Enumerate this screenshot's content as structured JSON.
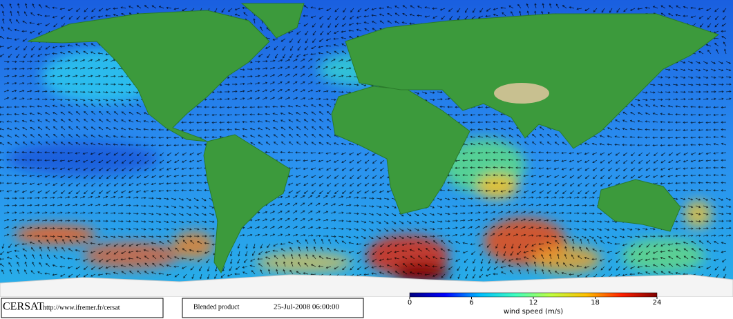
{
  "logo": "CERSAT",
  "url": "http://www.ifremer.fr/cersat",
  "product": "Blended product",
  "datetime": "25-Jul-2008 06:00:00",
  "colorbar": {
    "label": "wind speed (m/s)",
    "range": [
      0,
      24
    ],
    "ticks": [
      0,
      6,
      12,
      18,
      24
    ],
    "colors": [
      "#00007f",
      "#0000ff",
      "#00bfff",
      "#40ffbf",
      "#bfff40",
      "#ffbf00",
      "#ff2000",
      "#7f0000"
    ]
  }
}
